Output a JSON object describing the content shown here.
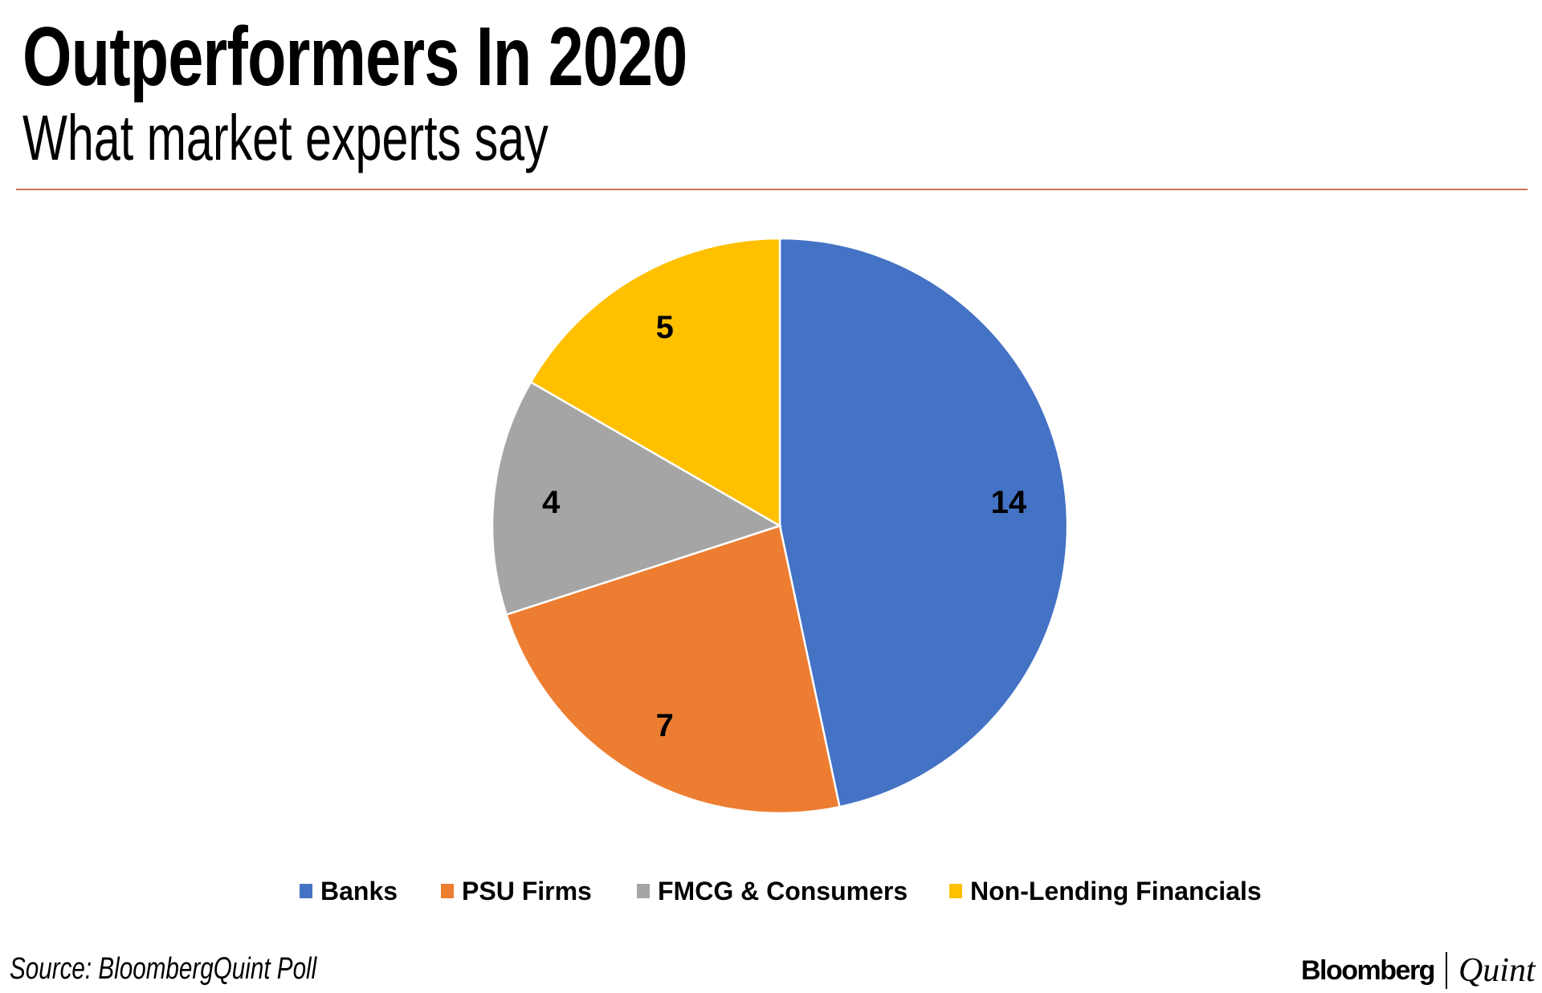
{
  "chart_data": {
    "type": "pie",
    "title": "Outperformers In 2020",
    "subtitle": "What market experts say",
    "categories": [
      "Banks",
      "PSU Firms",
      "FMCG & Consumers",
      "Non-Lending Financials"
    ],
    "values": [
      14,
      7,
      4,
      5
    ],
    "data_labels": [
      "14",
      "7",
      "4",
      "5"
    ],
    "colors": [
      "#4472C4",
      "#ED7D31",
      "#A5A5A5",
      "#FFC000"
    ],
    "start_angle": "12 o'clock, clockwise",
    "legend_position": "bottom"
  },
  "footer": {
    "source": "Source: BloombergQuint Poll",
    "logo_left": "Bloomberg",
    "logo_right": "Quint"
  }
}
